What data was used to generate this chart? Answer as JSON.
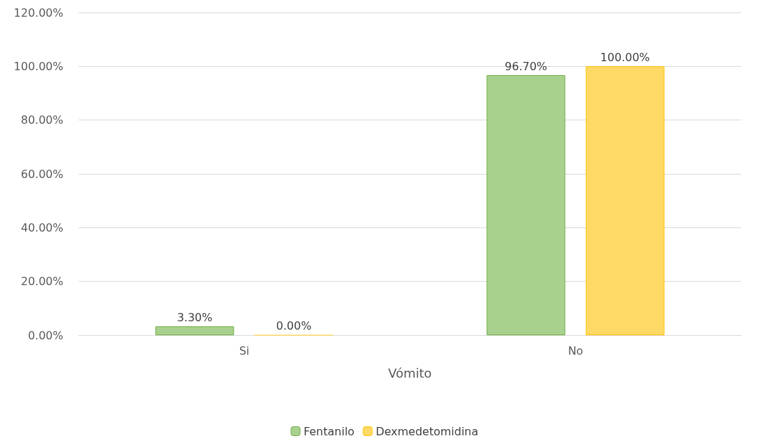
{
  "chart_data": {
    "type": "bar",
    "xlabel": "Vómito",
    "categories": [
      "Si",
      "No"
    ],
    "series": [
      {
        "name": "Fentanilo",
        "color": "#a9d18e",
        "values": [
          3.3,
          96.7
        ],
        "value_labels": [
          "3.30%",
          "96.70%"
        ]
      },
      {
        "name": "Dexmedetomidina",
        "color": "#ffd966",
        "values": [
          0,
          100
        ],
        "value_labels": [
          "0.00%",
          "100.00%"
        ]
      }
    ],
    "ylim": [
      0,
      120
    ],
    "yticks": [
      {
        "value": 0,
        "label": "0.00%"
      },
      {
        "value": 20,
        "label": "20.00%"
      },
      {
        "value": 40,
        "label": "40.00%"
      },
      {
        "value": 60,
        "label": "60.00%"
      },
      {
        "value": 80,
        "label": "80.00%"
      },
      {
        "value": 100,
        "label": "100.00%"
      },
      {
        "value": 120,
        "label": "120.00%"
      }
    ],
    "grid": "y",
    "legend": "bottom"
  }
}
